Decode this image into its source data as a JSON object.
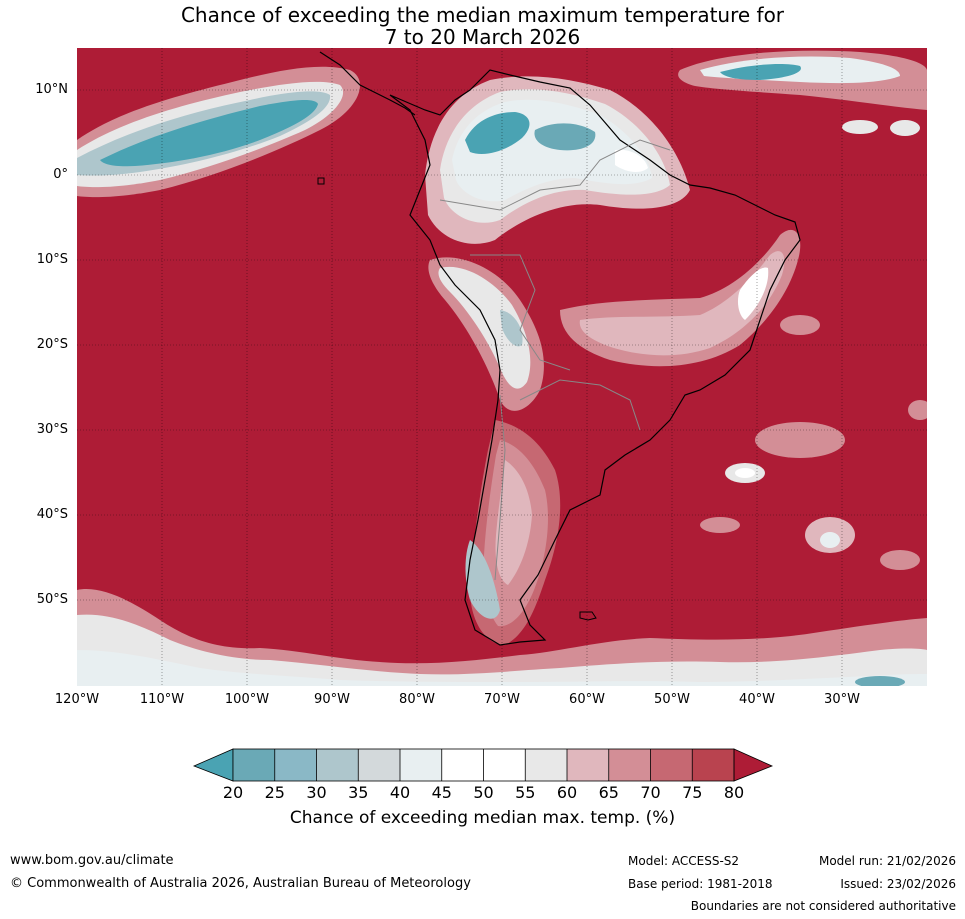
{
  "title": {
    "line1": "Chance of exceeding the median maximum temperature for",
    "line2": "7 to 20 March 2026"
  },
  "map": {
    "lat_labels": [
      "10°N",
      "0°",
      "10°S",
      "20°S",
      "30°S",
      "40°S",
      "50°S"
    ],
    "lon_labels": [
      "120°W",
      "110°W",
      "100°W",
      "90°W",
      "80°W",
      "70°W",
      "60°W",
      "50°W",
      "40°W",
      "30°W"
    ],
    "extent": {
      "lon": [
        -120,
        -20
      ],
      "lat": [
        -60,
        15
      ]
    },
    "background_category": ">80%"
  },
  "colorbar": {
    "ticks": [
      "20",
      "25",
      "30",
      "35",
      "40",
      "45",
      "50",
      "55",
      "60",
      "65",
      "70",
      "75",
      "80"
    ],
    "label": "Chance of exceeding median max. temp. (%)",
    "colors": {
      "below_20": "#4aa3b3",
      "20_25": "#6aa9b6",
      "25_30": "#8ab8c6",
      "30_35": "#aec6cc",
      "35_40": "#d3d9db",
      "40_45": "#e8eff1",
      "45_50": "#ffffff",
      "50_55": "#ffffff",
      "55_60": "#e8e8e8",
      "60_65": "#e0b7bd",
      "65_70": "#d38e96",
      "70_75": "#c66872",
      "75_80": "#b9434f",
      "above_80": "#ae1c36"
    }
  },
  "footer": {
    "website": "www.bom.gov.au/climate",
    "copyright": "© Commonwealth of Australia 2026, Australian Bureau of Meteorology",
    "model": "Model: ACCESS-S2",
    "base_period": "Base period: 1981-2018",
    "model_run": "Model run: 21/02/2026",
    "issued": "Issued: 23/02/2026",
    "disclaimer": "Boundaries are not considered authoritative"
  }
}
